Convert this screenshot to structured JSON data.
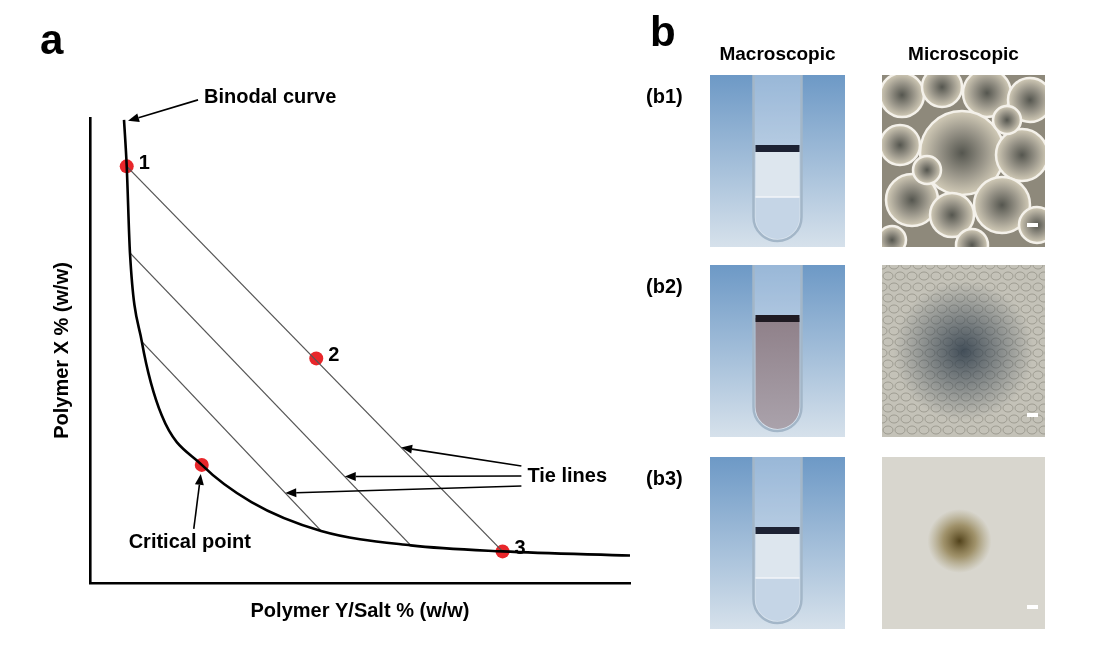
{
  "chart_data": {
    "type": "line",
    "panel_label": "a",
    "x_label": "Polymer Y/Salt % (w/w)",
    "y_label": "Polymer X % (w/w)",
    "xlim": [
      0,
      100
    ],
    "ylim": [
      0,
      100
    ],
    "tick_labels": false,
    "grid": false,
    "curve": {
      "name": "Binodal curve",
      "color": "#000000",
      "marker": "none",
      "line_style": "solid",
      "x": [
        6.3,
        6.8,
        7.4,
        9.6,
        13.3,
        20.7,
        29.9,
        42.8,
        59.4,
        76.4,
        100
      ],
      "values": [
        99.6,
        89.6,
        71.0,
        51.9,
        36.0,
        25.4,
        17.4,
        11.2,
        8.1,
        6.8,
        5.9
      ]
    },
    "tie_lines": {
      "name": "Tie lines",
      "color": "#555555",
      "line_style": "solid",
      "lines": [
        {
          "x": [
            6.8,
            76.4
          ],
          "values": [
            89.6,
            6.8
          ]
        },
        {
          "x": [
            7.4,
            59.4
          ],
          "values": [
            71.0,
            8.1
          ]
        },
        {
          "x": [
            9.6,
            42.8
          ],
          "values": [
            51.9,
            11.2
          ]
        }
      ]
    },
    "points": {
      "color": "#e8262a",
      "marker": "circle",
      "items": [
        {
          "label": "1",
          "x": 6.8,
          "y": 89.6
        },
        {
          "label": "2",
          "x": 41.9,
          "y": 48.3
        },
        {
          "label": "3",
          "x": 76.4,
          "y": 6.8
        },
        {
          "label": "Critical point",
          "x": 20.7,
          "y": 25.4
        }
      ]
    }
  },
  "panel_b": {
    "label": "b",
    "columns": [
      "Macroscopic",
      "Microscopic"
    ],
    "rows": [
      "(b1)",
      "(b2)",
      "(b3)"
    ]
  }
}
